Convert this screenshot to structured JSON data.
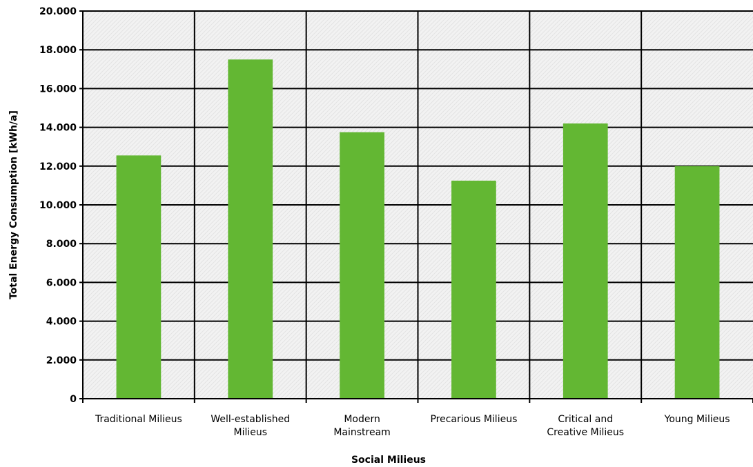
{
  "chart_data": {
    "type": "bar",
    "title": "",
    "xlabel": "Social Milieus",
    "ylabel": "Total Energy Consumption [kWh/a]",
    "ylim": [
      0,
      20000
    ],
    "yticks": [
      0,
      2000,
      4000,
      6000,
      8000,
      10000,
      12000,
      14000,
      16000,
      18000,
      20000
    ],
    "ytick_labels": [
      "0",
      "2.000",
      "4.000",
      "6.000",
      "8.000",
      "10.000",
      "12.000",
      "14.000",
      "16.000",
      "18.000",
      "20.000"
    ],
    "categories": [
      [
        "Traditional Milieus"
      ],
      [
        "Well-established",
        "Milieus"
      ],
      [
        "Modern",
        "Mainstream"
      ],
      [
        "Precarious Milieus"
      ],
      [
        "Critical and",
        "Creative Milieus"
      ],
      [
        "Young Milieus"
      ]
    ],
    "values": [
      12550,
      17500,
      13750,
      11250,
      14200,
      12000
    ],
    "grid": true,
    "legend": "none",
    "colors": {
      "bar": "#63b733",
      "plot_background": "#f2f2f2",
      "hatch": "#e3e3e3",
      "gridline": "#000000"
    }
  }
}
